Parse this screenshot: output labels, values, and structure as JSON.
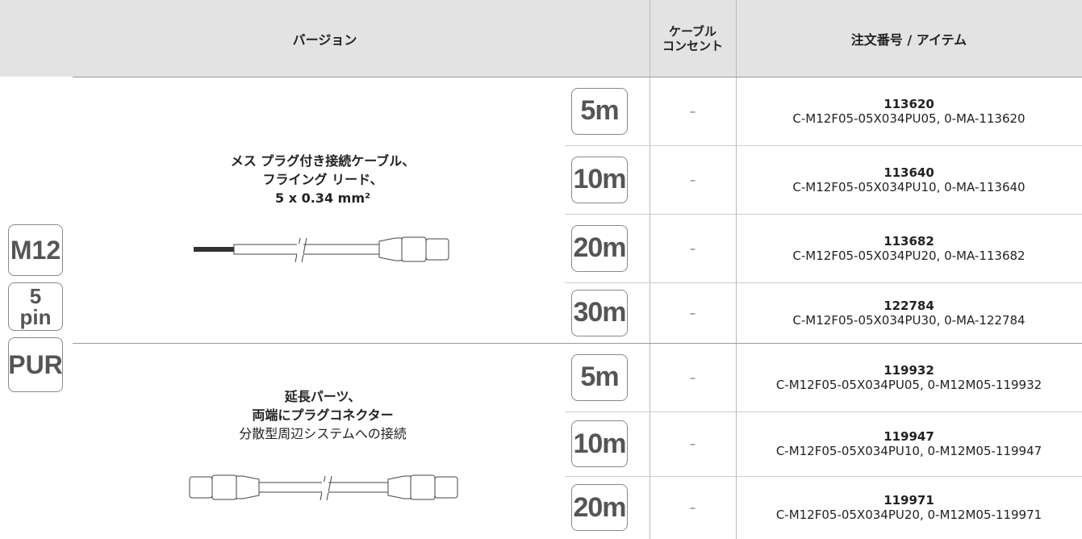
{
  "header": {
    "columns": [
      "バージョン",
      "ケーブル コンセント",
      "注文番号 / アイテム"
    ]
  },
  "badges": [
    "M12",
    "5 pin",
    "PUR"
  ],
  "groups": [
    {
      "description": [
        "メス プラグ付き接続ケーブル、",
        "フライング リード、",
        "5 x 0.34 mm²"
      ],
      "rows": [
        {
          "length": "5m",
          "outlet": "–",
          "order_number": "113620",
          "item": "C-M12F05-05X034PU05, 0-MA-113620"
        },
        {
          "length": "10m",
          "outlet": "–",
          "order_number": "113640",
          "item": "C-M12F05-05X034PU10, 0-MA-113640"
        },
        {
          "length": "20m",
          "outlet": "–",
          "order_number": "113682",
          "item": "C-M12F05-05X034PU20, 0-MA-113682"
        },
        {
          "length": "30m",
          "outlet": "–",
          "order_number": "122784",
          "item": "C-M12F05-05X034PU30, 0-MA-122784"
        }
      ]
    },
    {
      "description": [
        "延長パーツ、",
        "両端にプラグコネクター",
        "分散型周辺システムへの接続"
      ],
      "rows": [
        {
          "length": "5m",
          "outlet": "–",
          "order_number": "119932",
          "item": "C-M12F05-05X034PU05, 0-M12M05-119932"
        },
        {
          "length": "10m",
          "outlet": "–",
          "order_number": "119947",
          "item": "C-M12F05-05X034PU10, 0-M12M05-119947"
        },
        {
          "length": "20m",
          "outlet": "–",
          "order_number": "119971",
          "item": "C-M12F05-05X034PU20, 0-M12M05-119971"
        }
      ]
    }
  ]
}
